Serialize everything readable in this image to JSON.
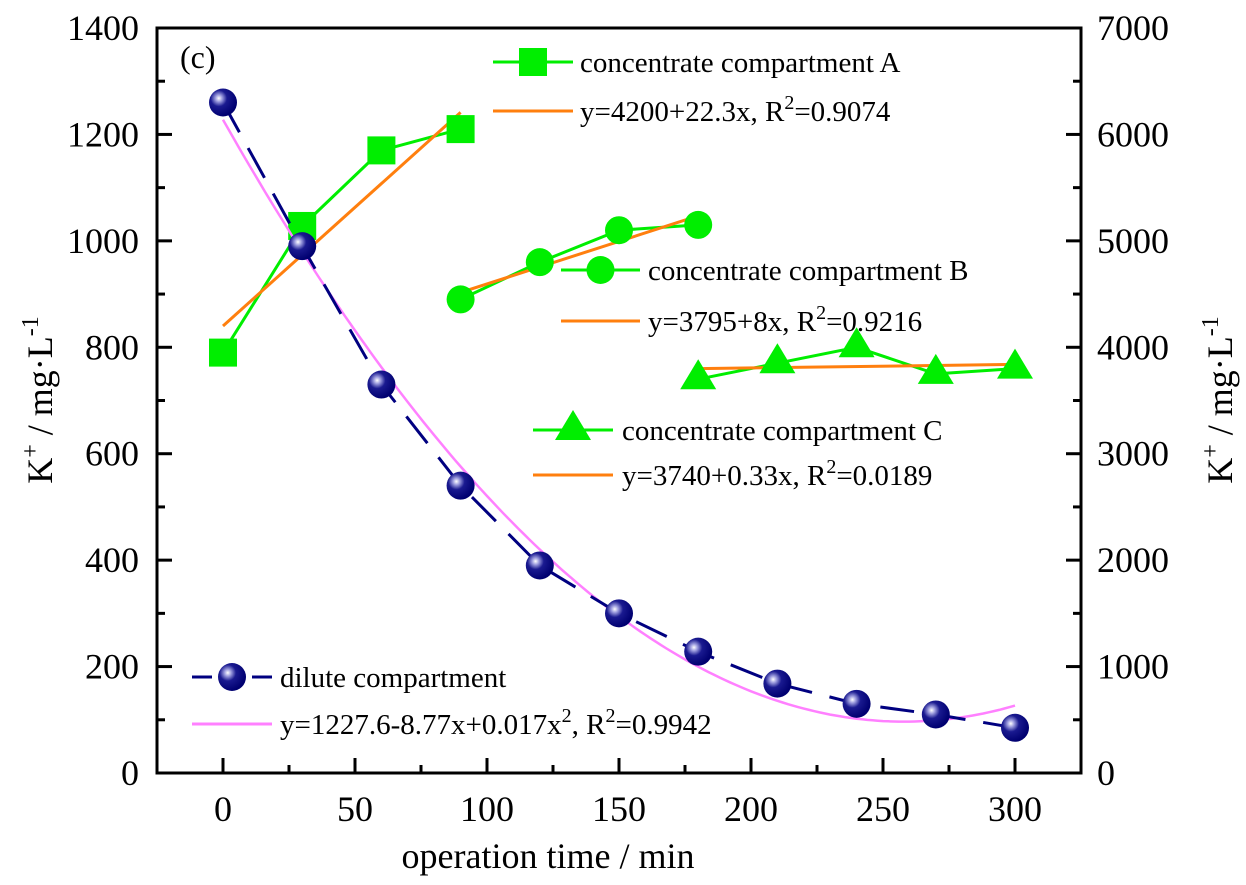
{
  "chart_data": {
    "type": "line",
    "panel_label": "(c)",
    "xlabel": "operation time / min",
    "ylabel_left": {
      "base": "K",
      "sup": "+",
      "rest": " / mg·L",
      "sup2": "-1"
    },
    "ylabel_right": {
      "base": "K",
      "sup": "+",
      "rest": " / mg·L",
      "sup2": "-1"
    },
    "xlim": [
      -25,
      325
    ],
    "ylim_left": [
      0,
      1400
    ],
    "ylim_right": [
      0,
      7000
    ],
    "x_ticks": [
      0,
      50,
      100,
      150,
      200,
      250,
      300
    ],
    "x_minor_ticks": [
      25,
      75,
      125,
      175,
      225,
      275
    ],
    "y_left_ticks": [
      0,
      200,
      400,
      600,
      800,
      1000,
      1200,
      1400
    ],
    "y_left_minor_ticks": [
      100,
      300,
      500,
      700,
      900,
      1100,
      1300
    ],
    "y_right_ticks": [
      0,
      1000,
      2000,
      3000,
      4000,
      5000,
      6000,
      7000
    ],
    "y_right_minor_ticks": [
      500,
      1500,
      2500,
      3500,
      4500,
      5500,
      6500
    ],
    "grid": false,
    "colors": {
      "concentrate": "#00ee00",
      "fit_linear": "#ff7f0e",
      "dilute": "#000080",
      "fit_poly": "#ff80ff"
    },
    "series": [
      {
        "name": "concentrate compartment A",
        "axis": "right",
        "marker": "square",
        "x": [
          0,
          30,
          60,
          90
        ],
        "values": [
          3950,
          5140,
          5850,
          6050
        ],
        "fit": {
          "label": "y=4200+22.3x, R",
          "sup": "2",
          "label_end": "=0.9074",
          "intercept": 4200,
          "slope": 22.3,
          "x_range": [
            0,
            90
          ]
        }
      },
      {
        "name": "concentrate compartment B",
        "axis": "right",
        "marker": "circle",
        "x": [
          90,
          120,
          150,
          180
        ],
        "values": [
          4450,
          4800,
          5100,
          5150
        ],
        "fit": {
          "label": "y=3795+8x, R",
          "sup": "2",
          "label_end": "=0.9216",
          "intercept": 3795,
          "slope": 8,
          "x_range": [
            90,
            180
          ]
        }
      },
      {
        "name": "concentrate compartment C",
        "axis": "right",
        "marker": "triangle",
        "x": [
          180,
          210,
          240,
          270,
          300
        ],
        "values": [
          3700,
          3850,
          4000,
          3750,
          3800
        ],
        "fit": {
          "label": "y=3740+0.33x, R",
          "sup": "2",
          "label_end": "=0.0189",
          "intercept": 3740,
          "slope": 0.33,
          "x_range": [
            180,
            300
          ]
        }
      },
      {
        "name": "dilute compartment",
        "axis": "left",
        "marker": "sphere",
        "line_style": "dashed",
        "x": [
          0,
          30,
          60,
          90,
          120,
          150,
          180,
          210,
          240,
          270,
          300
        ],
        "values": [
          1260,
          990,
          730,
          540,
          390,
          300,
          228,
          168,
          130,
          110,
          85
        ],
        "fit": {
          "label": "y=1227.6-8.77x+0.017x",
          "sup": "2",
          "label_mid": ", R",
          "sup_b": "2",
          "label_end": "=0.9942",
          "c0": 1227.6,
          "c1": -8.77,
          "c2": 0.017,
          "x_range": [
            0,
            300
          ]
        }
      }
    ]
  }
}
